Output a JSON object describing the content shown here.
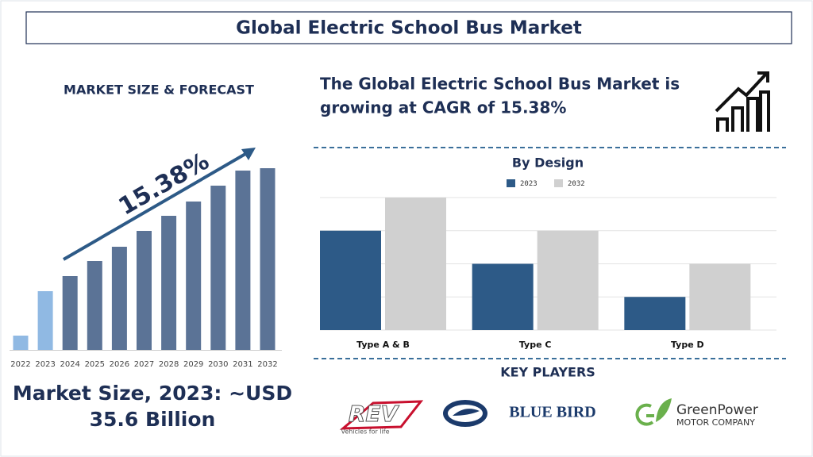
{
  "header": {
    "title": "Global Electric School Bus Market"
  },
  "cagr_text": [
    "The Global Electric School Bus Market is",
    "growing at CAGR of 15.38%"
  ],
  "market_size_text": [
    "Market Size, 2023: ~USD",
    "35.6 Billion"
  ],
  "key_players": {
    "title": "KEY PLAYERS",
    "logos": [
      {
        "name": "REV",
        "tagline": "Vehicles for life"
      },
      {
        "name": "BLUE BIRD"
      },
      {
        "name": "GreenPower",
        "tagline": "MOTOR COMPANY"
      }
    ]
  },
  "chart_data": [
    {
      "type": "bar",
      "title": "MARKET SIZE & FORECAST",
      "categories": [
        "2022",
        "2023",
        "2024",
        "2025",
        "2026",
        "2027",
        "2028",
        "2029",
        "2030",
        "2031",
        "2032"
      ],
      "values": [
        18,
        74,
        93,
        112,
        130,
        150,
        169,
        187,
        207,
        226,
        229
      ],
      "colors": [
        "#90b9e3",
        "#90b9e3",
        "#5b7396",
        "#5b7396",
        "#5b7396",
        "#5b7396",
        "#5b7396",
        "#5b7396",
        "#5b7396",
        "#5b7396",
        "#5b7396"
      ],
      "annotation": "15.38%"
    },
    {
      "type": "bar",
      "title": "By Design",
      "categories": [
        "Type A & B",
        "Type C",
        "Type D"
      ],
      "series": [
        {
          "name": "2023",
          "color": "#2d5a87",
          "values": [
            3,
            2,
            1
          ]
        },
        {
          "name": "2032",
          "color": "#d0d0d0",
          "values": [
            4,
            3,
            2
          ]
        }
      ],
      "ylim": [
        0,
        4
      ],
      "yticks": [
        0,
        1,
        2,
        3,
        4
      ],
      "grid": true
    }
  ]
}
